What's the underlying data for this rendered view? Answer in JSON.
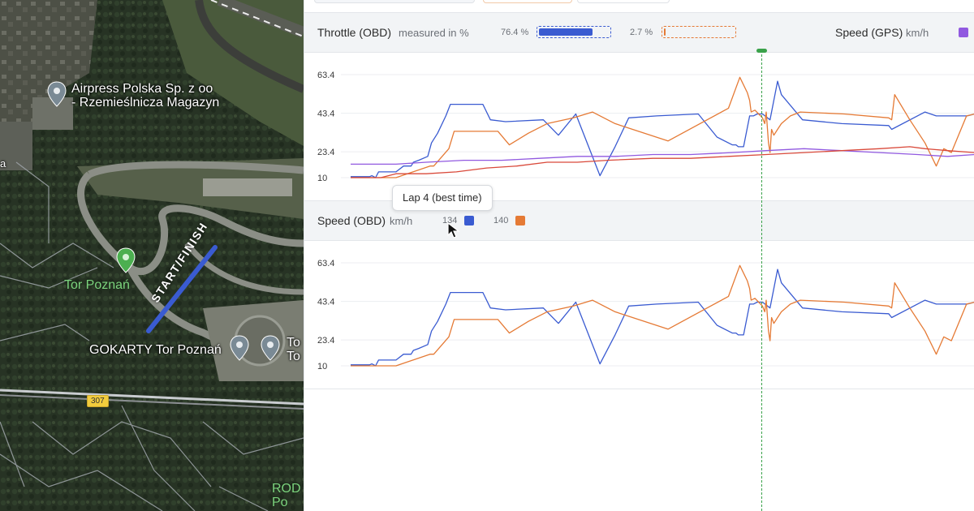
{
  "map": {
    "places": [
      {
        "line1": "Airpress Polska Sp. z oo",
        "line2": "- Rzemieślnicza Magazyn"
      },
      {
        "line1": "Tor Poznań"
      },
      {
        "line1": "GOKARTY Tor Poznań"
      },
      {
        "line1": "To",
        "line2": "To"
      },
      {
        "line1": "ROD",
        "line2": "Po"
      }
    ],
    "edge_letter": "a",
    "road_number": "307",
    "start_finish": "START/FINISH",
    "track_color": "#3a5bd1",
    "pin_color_gray": "#7a8a95",
    "pin_color_green": "#4caf50"
  },
  "throttle": {
    "title": "Throttle (OBD)",
    "unit": "measured in %",
    "lap_a_value": "76.4 %",
    "lap_a_fill": 0.764,
    "lap_b_value": "2.7 %",
    "lap_b_fill": 0.027,
    "secondary_title": "Speed (GPS)",
    "secondary_unit": "km/h"
  },
  "speed_obd": {
    "title": "Speed (OBD)",
    "unit": "km/h",
    "lap_a_value": "134",
    "lap_b_value": "140"
  },
  "tooltip": {
    "text": "Lap 4 (best time)"
  },
  "colors": {
    "lap_a": "#3a5bd1",
    "lap_b": "#e57a35",
    "gps_a": "#9159e0",
    "gps_b": "#d9493a",
    "scrubber": "#3aa24a"
  },
  "chart_data": [
    {
      "type": "line",
      "title": "Throttle (OBD)",
      "y_ticks": [
        "63.4",
        "43.4",
        "23.4",
        "10"
      ],
      "ylim": [
        10,
        63.4
      ],
      "grid": true,
      "series": [
        {
          "color": "#3a5bd1",
          "x": [
            0,
            25,
            28,
            33,
            37,
            40,
            60,
            70,
            80,
            83,
            90,
            102,
            107,
            115,
            126,
            132,
            150,
            165,
            175,
            185,
            205,
            255,
            275,
            298,
            330,
            350,
            368,
            405,
            460,
            485,
            505,
            510,
            513,
            516,
            520,
            528,
            530,
            533,
            538,
            545,
            555,
            565,
            570,
            598,
            650,
            712,
            716,
            760,
            775,
            795,
            816,
            826
          ],
          "y": [
            10.5,
            10.5,
            11,
            10,
            13,
            13,
            13,
            16,
            16,
            18,
            19,
            21,
            28,
            33,
            42,
            48,
            48,
            48,
            48,
            40,
            39,
            40,
            32,
            43,
            11,
            26,
            41,
            42,
            43,
            31,
            27,
            27,
            26,
            26,
            26,
            42,
            42,
            42,
            43,
            43,
            40,
            60,
            53,
            40,
            38,
            37,
            35,
            44,
            42,
            42,
            42,
            43
          ]
        },
        {
          "color": "#e57a35",
          "x": [
            0,
            30,
            60,
            105,
            110,
            130,
            137,
            160,
            170,
            195,
            210,
            235,
            260,
            295,
            320,
            350,
            420,
            500,
            515,
            525,
            528,
            530,
            535,
            540,
            545,
            548,
            550,
            553,
            555,
            557,
            560,
            565,
            570,
            582,
            595,
            653,
            712,
            716,
            720,
            740,
            760,
            775,
            785,
            795,
            815,
            826
          ],
          "y": [
            10,
            10,
            10,
            16,
            16,
            25,
            34,
            34,
            34,
            34,
            27,
            33,
            38,
            41,
            44,
            38,
            29,
            46,
            62,
            54,
            50,
            44,
            45,
            43,
            41,
            38,
            44,
            28,
            23,
            35,
            32,
            35,
            38,
            42,
            44,
            43,
            41,
            40,
            53,
            40,
            28,
            16,
            25,
            23,
            42,
            43
          ]
        },
        {
          "color": "#9159e0",
          "x": [
            0,
            60,
            100,
            150,
            200,
            250,
            300,
            320,
            350,
            400,
            450,
            505,
            550,
            600,
            650,
            700,
            750,
            790,
            826
          ],
          "y": [
            17,
            17,
            18,
            19,
            19,
            20,
            21,
            21,
            21,
            22,
            22,
            23,
            24,
            25,
            24,
            23,
            22,
            21,
            22
          ]
        },
        {
          "color": "#d9493a",
          "x": [
            0,
            40,
            60,
            100,
            140,
            180,
            220,
            260,
            300,
            340,
            400,
            450,
            500,
            550,
            600,
            650,
            700,
            740,
            760,
            790,
            826
          ],
          "y": [
            10,
            10,
            12,
            12,
            13,
            15,
            16,
            18,
            18,
            19,
            20,
            20,
            21,
            22,
            23,
            24,
            25,
            26,
            25,
            24,
            23
          ]
        }
      ]
    },
    {
      "type": "line",
      "title": "Speed (OBD)",
      "y_ticks": [
        "63.4",
        "43.4",
        "23.4",
        "10"
      ],
      "ylim": [
        10,
        63.4
      ],
      "grid": true,
      "series": [
        {
          "color": "#3a5bd1",
          "x": [
            0,
            25,
            28,
            33,
            37,
            40,
            60,
            70,
            80,
            83,
            90,
            102,
            107,
            115,
            126,
            132,
            150,
            165,
            175,
            185,
            205,
            255,
            275,
            298,
            330,
            350,
            368,
            405,
            460,
            485,
            505,
            510,
            513,
            516,
            520,
            528,
            530,
            533,
            538,
            545,
            555,
            565,
            570,
            598,
            650,
            712,
            716,
            760,
            775,
            795,
            816,
            826
          ],
          "y": [
            10.5,
            10.5,
            11,
            10,
            13,
            13,
            13,
            16,
            16,
            18,
            19,
            21,
            28,
            33,
            42,
            48,
            48,
            48,
            48,
            40,
            39,
            40,
            32,
            43,
            11,
            26,
            41,
            42,
            43,
            31,
            27,
            27,
            26,
            26,
            26,
            42,
            42,
            42,
            43,
            43,
            40,
            60,
            53,
            40,
            38,
            37,
            35,
            44,
            42,
            42,
            42,
            43
          ]
        },
        {
          "color": "#e57a35",
          "x": [
            0,
            30,
            60,
            105,
            110,
            130,
            137,
            160,
            170,
            195,
            210,
            235,
            260,
            295,
            320,
            350,
            420,
            500,
            515,
            525,
            528,
            530,
            535,
            540,
            545,
            548,
            550,
            553,
            555,
            557,
            560,
            565,
            570,
            582,
            595,
            653,
            712,
            716,
            720,
            740,
            760,
            775,
            785,
            795,
            815,
            826
          ],
          "y": [
            10,
            10,
            10,
            16,
            16,
            25,
            34,
            34,
            34,
            34,
            27,
            33,
            38,
            41,
            44,
            38,
            29,
            46,
            62,
            54,
            50,
            44,
            45,
            43,
            41,
            38,
            44,
            28,
            23,
            35,
            32,
            35,
            38,
            42,
            44,
            43,
            41,
            40,
            53,
            40,
            28,
            16,
            25,
            23,
            42,
            43
          ]
        }
      ]
    }
  ]
}
